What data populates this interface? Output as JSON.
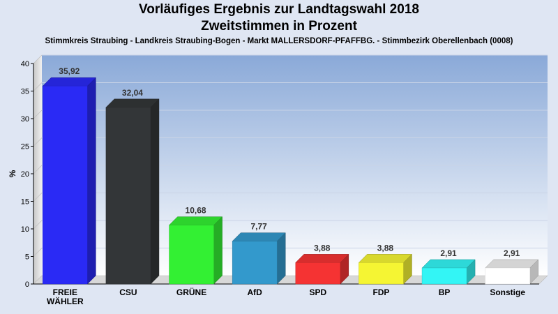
{
  "chart_data": {
    "type": "bar",
    "title": "Vorläufiges Ergebnis zur Landtagswahl 2018",
    "title_line2": "Zweitstimmen in Prozent",
    "subtitle": "Stimmkreis Straubing - Landkreis Straubing-Bogen - Markt MALLERSDORF-PFAFFBG. - Stimmbezirk Oberellenbach (0008)",
    "ylabel": "%",
    "ylim": [
      0,
      40
    ],
    "yticks": [
      0,
      5,
      10,
      15,
      20,
      25,
      30,
      35,
      40
    ],
    "grid": true,
    "categories": [
      [
        "FREIE",
        "WÄHLER"
      ],
      [
        "CSU"
      ],
      [
        "GRÜNE"
      ],
      [
        "AfD"
      ],
      [
        "SPD"
      ],
      [
        "FDP"
      ],
      [
        "BP"
      ],
      [
        "Sonstige"
      ]
    ],
    "values": [
      35.92,
      32.04,
      10.68,
      7.77,
      3.88,
      3.88,
      2.91,
      2.91
    ],
    "value_labels": [
      "35,92",
      "32,04",
      "10,68",
      "7,77",
      "3,88",
      "3,88",
      "2,91",
      "2,91"
    ],
    "colors": [
      "#2a2af5",
      "#333638",
      "#33f033",
      "#3399cc",
      "#f53333",
      "#f5f533",
      "#33f5f5",
      "#ffffff"
    ]
  }
}
